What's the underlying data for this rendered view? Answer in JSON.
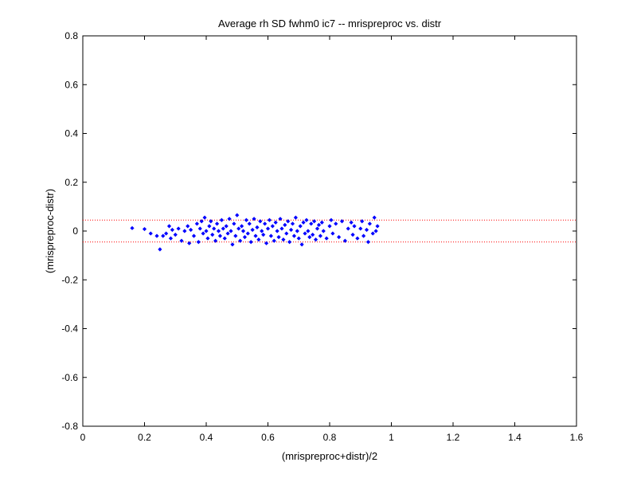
{
  "chart_data": {
    "type": "scatter",
    "title": "Average rh SD fwhm0 ic7 -- mrispreproc vs. distr",
    "xlabel": "(mrispreproc+distr)/2",
    "ylabel": "(mrispreproc-distr)",
    "xlim": [
      0,
      1.6
    ],
    "ylim": [
      -0.8,
      0.8
    ],
    "xticks": [
      "0",
      "0.2",
      "0.4",
      "0.6",
      "0.8",
      "1",
      "1.2",
      "1.4",
      "1.6"
    ],
    "yticks": [
      "0.8",
      "0.6",
      "0.4",
      "0.2",
      "0",
      "-0.2",
      "-0.4",
      "-0.6",
      "-0.8"
    ],
    "grid": false,
    "series": [
      {
        "marker": "diamond",
        "color": "#0000ff",
        "points": [
          [
            0.16,
            0.012
          ],
          [
            0.2,
            0.008
          ],
          [
            0.22,
            -0.01
          ],
          [
            0.24,
            -0.02
          ],
          [
            0.25,
            -0.075
          ],
          [
            0.26,
            -0.02
          ],
          [
            0.27,
            -0.01
          ],
          [
            0.28,
            0.02
          ],
          [
            0.285,
            -0.03
          ],
          [
            0.29,
            0.005
          ],
          [
            0.3,
            -0.015
          ],
          [
            0.31,
            0.01
          ],
          [
            0.32,
            -0.04
          ],
          [
            0.33,
            0.0
          ],
          [
            0.34,
            0.02
          ],
          [
            0.345,
            -0.05
          ],
          [
            0.35,
            0.005
          ],
          [
            0.36,
            -0.02
          ],
          [
            0.37,
            0.03
          ],
          [
            0.375,
            -0.045
          ],
          [
            0.38,
            0.01
          ],
          [
            0.385,
            0.04
          ],
          [
            0.39,
            -0.01
          ],
          [
            0.395,
            0.055
          ],
          [
            0.4,
            0.0
          ],
          [
            0.405,
            -0.03
          ],
          [
            0.41,
            0.02
          ],
          [
            0.415,
            0.04
          ],
          [
            0.42,
            -0.015
          ],
          [
            0.425,
            0.01
          ],
          [
            0.43,
            -0.04
          ],
          [
            0.435,
            0.03
          ],
          [
            0.44,
            0.0
          ],
          [
            0.445,
            -0.02
          ],
          [
            0.45,
            0.045
          ],
          [
            0.455,
            0.01
          ],
          [
            0.46,
            -0.03
          ],
          [
            0.465,
            0.02
          ],
          [
            0.47,
            -0.01
          ],
          [
            0.475,
            0.05
          ],
          [
            0.48,
            0.0
          ],
          [
            0.485,
            -0.055
          ],
          [
            0.49,
            0.03
          ],
          [
            0.495,
            -0.02
          ],
          [
            0.5,
            0.065
          ],
          [
            0.505,
            0.01
          ],
          [
            0.51,
            -0.04
          ],
          [
            0.515,
            0.02
          ],
          [
            0.52,
            0.0
          ],
          [
            0.525,
            -0.025
          ],
          [
            0.53,
            0.045
          ],
          [
            0.535,
            -0.01
          ],
          [
            0.54,
            0.03
          ],
          [
            0.545,
            -0.045
          ],
          [
            0.55,
            0.005
          ],
          [
            0.555,
            0.05
          ],
          [
            0.56,
            -0.02
          ],
          [
            0.565,
            0.015
          ],
          [
            0.57,
            -0.035
          ],
          [
            0.575,
            0.04
          ],
          [
            0.58,
            0.0
          ],
          [
            0.585,
            -0.015
          ],
          [
            0.59,
            0.03
          ],
          [
            0.595,
            -0.05
          ],
          [
            0.6,
            0.01
          ],
          [
            0.605,
            0.045
          ],
          [
            0.61,
            -0.02
          ],
          [
            0.615,
            0.02
          ],
          [
            0.62,
            -0.04
          ],
          [
            0.625,
            0.035
          ],
          [
            0.63,
            0.0
          ],
          [
            0.635,
            -0.025
          ],
          [
            0.64,
            0.05
          ],
          [
            0.645,
            0.01
          ],
          [
            0.65,
            -0.035
          ],
          [
            0.655,
            0.025
          ],
          [
            0.66,
            -0.01
          ],
          [
            0.665,
            0.04
          ],
          [
            0.67,
            -0.045
          ],
          [
            0.675,
            0.005
          ],
          [
            0.68,
            0.03
          ],
          [
            0.685,
            -0.02
          ],
          [
            0.69,
            0.055
          ],
          [
            0.695,
            0.0
          ],
          [
            0.7,
            -0.03
          ],
          [
            0.705,
            0.02
          ],
          [
            0.71,
            -0.055
          ],
          [
            0.715,
            0.035
          ],
          [
            0.72,
            -0.01
          ],
          [
            0.725,
            0.045
          ],
          [
            0.73,
            0.0
          ],
          [
            0.735,
            -0.025
          ],
          [
            0.74,
            0.03
          ],
          [
            0.745,
            -0.015
          ],
          [
            0.75,
            0.04
          ],
          [
            0.755,
            -0.035
          ],
          [
            0.76,
            0.01
          ],
          [
            0.765,
            0.025
          ],
          [
            0.77,
            -0.02
          ],
          [
            0.775,
            0.035
          ],
          [
            0.78,
            0.0
          ],
          [
            0.79,
            -0.03
          ],
          [
            0.8,
            0.02
          ],
          [
            0.805,
            0.045
          ],
          [
            0.81,
            -0.01
          ],
          [
            0.82,
            0.03
          ],
          [
            0.83,
            -0.025
          ],
          [
            0.84,
            0.04
          ],
          [
            0.85,
            -0.04
          ],
          [
            0.86,
            0.01
          ],
          [
            0.87,
            0.035
          ],
          [
            0.875,
            -0.015
          ],
          [
            0.88,
            0.02
          ],
          [
            0.89,
            -0.03
          ],
          [
            0.9,
            0.01
          ],
          [
            0.905,
            0.04
          ],
          [
            0.91,
            -0.02
          ],
          [
            0.92,
            0.005
          ],
          [
            0.925,
            -0.045
          ],
          [
            0.93,
            0.03
          ],
          [
            0.94,
            -0.01
          ],
          [
            0.945,
            0.055
          ],
          [
            0.95,
            0.0
          ],
          [
            0.955,
            0.02
          ]
        ]
      }
    ],
    "reference_lines": [
      {
        "y": 0.045,
        "color": "#ff0000",
        "style": "dotted"
      },
      {
        "y": -0.045,
        "color": "#ff0000",
        "style": "dotted"
      }
    ]
  }
}
